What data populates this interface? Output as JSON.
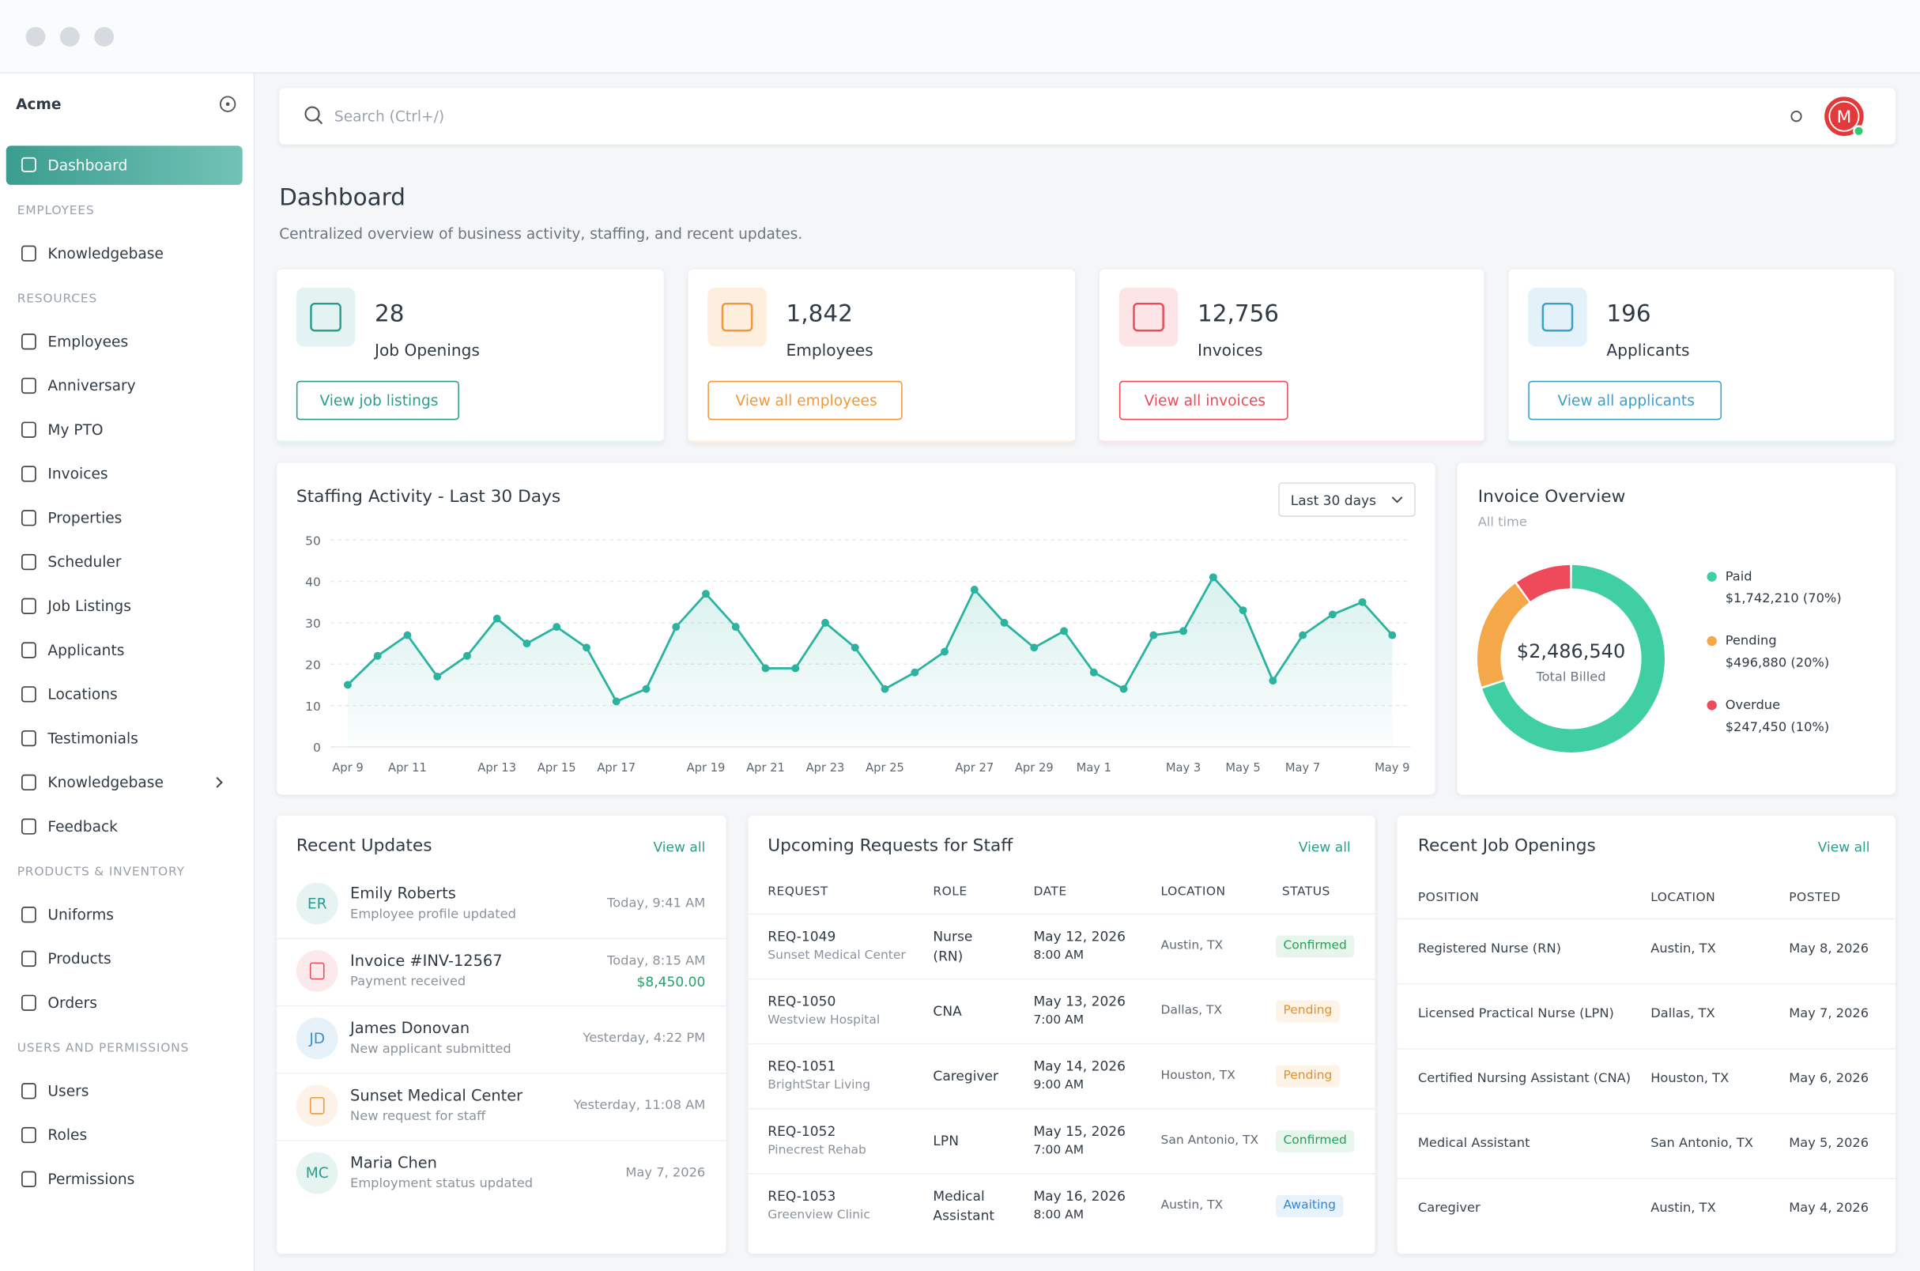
{
  "sidebar": {
    "brand": "Acme",
    "active": "Dashboard",
    "sections": [
      {
        "title": "EMPLOYEES",
        "items": [
          "Knowledgebase"
        ]
      },
      {
        "title": "RESOURCES",
        "items": [
          "Employees",
          "Anniversary",
          "My PTO",
          "Invoices",
          "Properties",
          "Scheduler",
          "Job Listings",
          "Applicants",
          "Locations",
          "Testimonials",
          "Knowledgebase",
          "Feedback"
        ]
      },
      {
        "title": "PRODUCTS & INVENTORY",
        "items": [
          "Uniforms",
          "Products",
          "Orders"
        ]
      },
      {
        "title": "USERS AND PERMISSIONS",
        "items": [
          "Users",
          "Roles",
          "Permissions"
        ]
      }
    ]
  },
  "topbar": {
    "search_placeholder": "Search (Ctrl+/)",
    "avatar": "M"
  },
  "page": {
    "title": "Dashboard",
    "subtitle": "Centralized overview of business activity, staffing, and recent updates."
  },
  "stats": [
    {
      "value": "28",
      "label": "Job Openings",
      "button": "View job listings",
      "color": "#2a9d8f",
      "tint": "#e3f3f1"
    },
    {
      "value": "1,842",
      "label": "Employees",
      "button": "View all employees",
      "color": "#f0983a",
      "tint": "#fdeedd"
    },
    {
      "value": "12,756",
      "label": "Invoices",
      "button": "View all invoices",
      "color": "#e94b58",
      "tint": "#fde5e7"
    },
    {
      "value": "196",
      "label": "Applicants",
      "button": "View all applicants",
      "color": "#3aa0c8",
      "tint": "#e3f2f8"
    }
  ],
  "staffing_range": "Last 30 days",
  "chart_data": [
    {
      "type": "line",
      "title": "Staffing Activity - Last 30 Days",
      "color": "#2bb3a0",
      "grid": true,
      "categories": [
        "Apr 9",
        null,
        "Apr 11",
        null,
        null,
        "Apr 13",
        null,
        "Apr 15",
        null,
        "Apr 17",
        null,
        null,
        "Apr 19",
        null,
        "Apr 21",
        null,
        "Apr 23",
        null,
        "Apr 25",
        null,
        null,
        "Apr 27",
        null,
        "Apr 29",
        null,
        "May 1",
        null,
        null,
        "May 3",
        null,
        "May 5",
        null,
        "May 7",
        null,
        null,
        "May 9"
      ],
      "values": [
        15,
        22,
        27,
        17,
        22,
        31,
        25,
        29,
        24,
        11,
        14,
        29,
        37,
        29,
        19,
        19,
        30,
        24,
        14,
        18,
        23,
        38,
        30,
        24,
        28,
        18,
        14,
        27,
        28,
        41,
        33,
        16,
        27,
        32,
        35,
        27
      ],
      "ylim": [
        0,
        50
      ],
      "yticks": [
        0,
        10,
        20,
        30,
        40,
        50
      ]
    },
    {
      "type": "pie",
      "title": "Invoice Overview",
      "subtitle": "All time",
      "center_value": "$2,486,540",
      "center_label": "Total Billed",
      "categories": [
        "Paid",
        "Pending",
        "Overdue"
      ],
      "values": [
        70,
        20,
        10
      ],
      "value_labels": [
        "$1,742,210 (70%)",
        "$496,880 (20%)",
        "$247,450 (10%)"
      ],
      "colors": [
        "#40cfa3",
        "#f5a84a",
        "#ee4a59"
      ]
    }
  ],
  "recent_updates": {
    "title": "Recent Updates",
    "link": "View all",
    "items": [
      {
        "avatar": "ER",
        "name": "Emily Roberts",
        "detail": "Employee profile updated",
        "time": "Today, 9:41 AM",
        "color": "#2a9d8f"
      },
      {
        "name": "Invoice #INV-12567",
        "detail": "Payment received",
        "time": "Today, 8:15 AM",
        "amount": "$8,450.00",
        "color": "#e94b58"
      },
      {
        "avatar": "JD",
        "name": "James Donovan",
        "detail": "New applicant submitted",
        "time": "Yesterday, 4:22 PM",
        "color": "#3a8fd0"
      },
      {
        "name": "Sunset Medical Center",
        "detail": "New request for staff",
        "time": "Yesterday, 11:08 AM",
        "color": "#f0983a"
      },
      {
        "avatar": "MC",
        "name": "Maria Chen",
        "detail": "Employment status updated",
        "time": "May 7, 2026",
        "color": "#2a9d8f"
      }
    ]
  },
  "requests": {
    "title": "Upcoming Requests for Staff",
    "link": "View all",
    "headers": [
      "REQUEST",
      "ROLE",
      "DATE",
      "LOCATION",
      "STATUS"
    ],
    "status_colors": {
      "Confirmed": "#22a35b",
      "Pending": "#ea8f25",
      "Awaiting": "#2f86d6"
    },
    "rows": [
      {
        "id": "REQ-1049",
        "client": "Sunset Medical Center",
        "role": [
          "Nurse",
          "(RN)"
        ],
        "date": "May 12, 2026",
        "time": "8:00 AM",
        "location": "Austin, TX",
        "status": "Confirmed"
      },
      {
        "id": "REQ-1050",
        "client": "Westview Hospital",
        "role": [
          "CNA"
        ],
        "date": "May 13, 2026",
        "time": "7:00 AM",
        "location": "Dallas, TX",
        "status": "Pending"
      },
      {
        "id": "REQ-1051",
        "client": "BrightStar Living",
        "role": [
          "Caregiver"
        ],
        "date": "May 14, 2026",
        "time": "9:00 AM",
        "location": "Houston, TX",
        "status": "Pending"
      },
      {
        "id": "REQ-1052",
        "client": "Pinecrest Rehab",
        "role": [
          "LPN"
        ],
        "date": "May 15, 2026",
        "time": "7:00 AM",
        "location": "San Antonio, TX",
        "status": "Confirmed"
      },
      {
        "id": "REQ-1053",
        "client": "Greenview Clinic",
        "role": [
          "Medical",
          "Assistant"
        ],
        "date": "May 16, 2026",
        "time": "8:00 AM",
        "location": "Austin, TX",
        "status": "Awaiting"
      }
    ]
  },
  "job_openings": {
    "title": "Recent Job Openings",
    "link": "View all",
    "headers": [
      "POSITION",
      "LOCATION",
      "POSTED"
    ],
    "rows": [
      [
        "Registered Nurse (RN)",
        "Austin, TX",
        "May 8, 2026"
      ],
      [
        "Licensed Practical Nurse (LPN)",
        "Dallas, TX",
        "May 7, 2026"
      ],
      [
        "Certified Nursing Assistant (CNA)",
        "Houston, TX",
        "May 6, 2026"
      ],
      [
        "Medical Assistant",
        "San Antonio, TX",
        "May 5, 2026"
      ],
      [
        "Caregiver",
        "Austin, TX",
        "May 4, 2026"
      ]
    ]
  }
}
